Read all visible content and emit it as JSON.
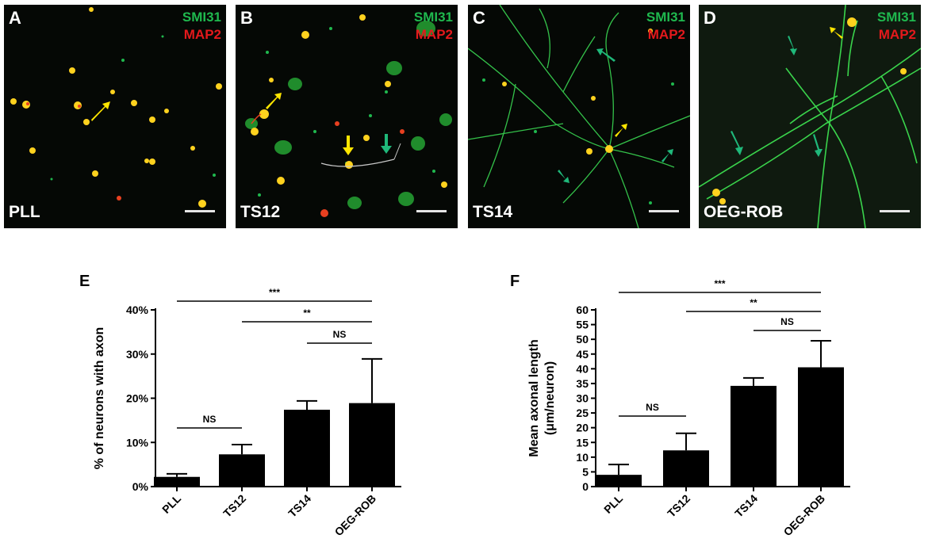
{
  "panels": [
    {
      "label": "A",
      "markers": [
        "SMI31",
        "MAP2"
      ],
      "condition": "PLL"
    },
    {
      "label": "B",
      "markers": [
        "SMI31",
        "MAP2"
      ],
      "condition": "TS12"
    },
    {
      "label": "C",
      "markers": [
        "SMI31",
        "MAP2"
      ],
      "condition": "TS14"
    },
    {
      "label": "D",
      "markers": [
        "SMI31",
        "MAP2"
      ],
      "condition": "OEG-ROB"
    }
  ],
  "colors": {
    "smi31": "#1fb84e",
    "map2": "#e3191c",
    "arrow_yellow": "#ffe600",
    "arrow_green": "#1fb87a",
    "bar": "#000000"
  },
  "chart_data": [
    {
      "panel_label": "E",
      "type": "bar",
      "categories": [
        "PLL",
        "TS12",
        "TS14",
        "OEG-ROB"
      ],
      "values": [
        2.2,
        7.3,
        17.4,
        18.9
      ],
      "errors": [
        0.7,
        2.2,
        2.0,
        10.0
      ],
      "ylabel": "% of neurons with axon",
      "ylim": [
        0,
        40
      ],
      "yticks": [
        0,
        10,
        20,
        30,
        40
      ],
      "tick_labels": [
        "0%",
        "10%",
        "20%",
        "30%",
        "40%"
      ],
      "significance": [
        {
          "from": 0,
          "to": 3,
          "label": "***"
        },
        {
          "from": 1,
          "to": 3,
          "label": "**"
        },
        {
          "from": 2,
          "to": 3,
          "label": "NS"
        },
        {
          "from": 0,
          "to": 1,
          "label": "NS"
        }
      ]
    },
    {
      "panel_label": "F",
      "type": "bar",
      "categories": [
        "PLL",
        "TS12",
        "TS14",
        "OEG-ROB"
      ],
      "values": [
        4,
        12.3,
        34.2,
        40.5
      ],
      "errors": [
        3.5,
        5.8,
        2.7,
        9.0
      ],
      "ylabel_line1": "Mean axonal length",
      "ylabel_line2": "(μm/neuron)",
      "ylim": [
        0,
        60
      ],
      "yticks": [
        0,
        5,
        10,
        15,
        20,
        25,
        30,
        35,
        40,
        45,
        50,
        55,
        60
      ],
      "tick_labels": [
        "0",
        "5",
        "10",
        "15",
        "20",
        "25",
        "30",
        "35",
        "40",
        "45",
        "50",
        "55",
        "60"
      ],
      "significance": [
        {
          "from": 0,
          "to": 3,
          "label": "***"
        },
        {
          "from": 1,
          "to": 3,
          "label": "**"
        },
        {
          "from": 2,
          "to": 3,
          "label": "NS"
        },
        {
          "from": 0,
          "to": 1,
          "label": "NS"
        }
      ]
    }
  ]
}
